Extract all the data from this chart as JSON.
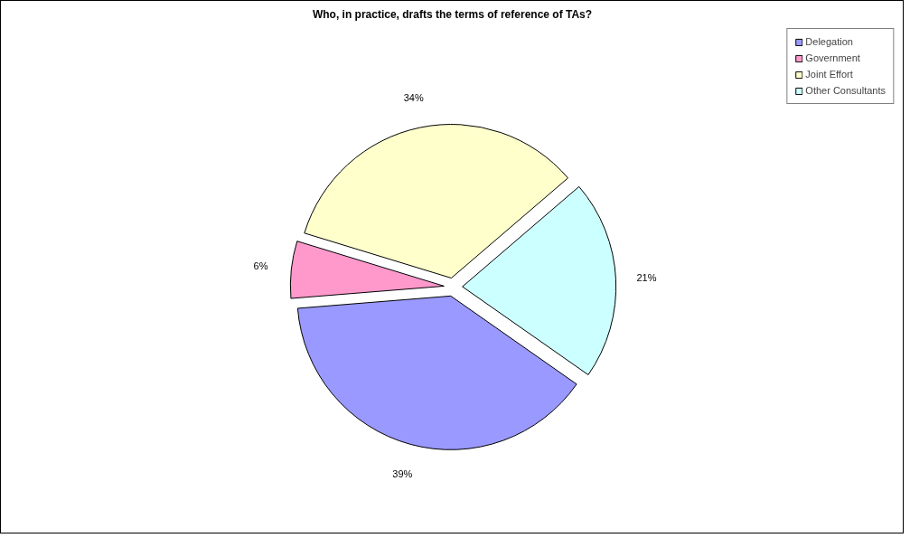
{
  "chart_data": {
    "type": "pie",
    "title": "Who, in practice, drafts the terms of reference of TAs?",
    "categories": [
      "Delegation",
      "Government",
      "Joint Effort",
      "Other Consultants"
    ],
    "values": [
      39,
      6,
      34,
      21
    ],
    "colors": [
      "#9999ff",
      "#ff99cc",
      "#ffffcc",
      "#ccffff"
    ],
    "value_labels": [
      "39%",
      "6%",
      "34%",
      "21%"
    ],
    "legend": "top right"
  }
}
